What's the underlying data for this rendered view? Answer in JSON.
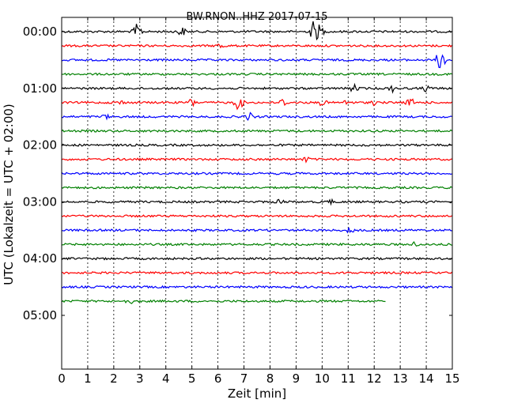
{
  "chart_data": {
    "type": "line",
    "title": "BW.RNON..HHZ 2017-07-15",
    "xlabel": "Zeit  [min]",
    "ylabel": "UTC (Lokalzeit = UTC + 02:00)",
    "xlim": [
      0,
      15
    ],
    "x_ticks": [
      0,
      1,
      2,
      3,
      4,
      5,
      6,
      7,
      8,
      9,
      10,
      11,
      12,
      13,
      14,
      15
    ],
    "x_tick_labels": [
      "0",
      "1",
      "2",
      "3",
      "4",
      "5",
      "6",
      "7",
      "8",
      "9",
      "10",
      "11",
      "12",
      "13",
      "14",
      "15"
    ],
    "y_tick_labels": [
      "00:00",
      "01:00",
      "02:00",
      "03:00",
      "04:00",
      "05:00"
    ],
    "y_tick_rows": [
      0,
      4,
      8,
      12,
      16,
      20
    ],
    "rows_total": 24,
    "grid_x": true,
    "colors": [
      "#000000",
      "#ff0000",
      "#0000ff",
      "#008000"
    ],
    "series": [
      {
        "row": 0,
        "end_min": 15,
        "events": [
          [
            2.9,
            10
          ],
          [
            4.6,
            6
          ],
          [
            9.7,
            16
          ],
          [
            9.9,
            9
          ]
        ]
      },
      {
        "row": 1,
        "end_min": 15,
        "events": [
          [
            6.1,
            4
          ]
        ]
      },
      {
        "row": 2,
        "end_min": 15,
        "events": [
          [
            14.55,
            14
          ],
          [
            14.7,
            6
          ]
        ]
      },
      {
        "row": 3,
        "end_min": 15,
        "events": []
      },
      {
        "row": 4,
        "end_min": 15,
        "events": [
          [
            11.2,
            5
          ],
          [
            12.7,
            4
          ],
          [
            14.0,
            4
          ]
        ]
      },
      {
        "row": 5,
        "end_min": 15,
        "events": [
          [
            2.2,
            4
          ],
          [
            5.0,
            5
          ],
          [
            6.8,
            10
          ],
          [
            8.5,
            5
          ],
          [
            10.0,
            4
          ],
          [
            11.0,
            4
          ],
          [
            12.0,
            3
          ],
          [
            13.4,
            5
          ]
        ]
      },
      {
        "row": 6,
        "end_min": 15,
        "events": [
          [
            1.7,
            3
          ],
          [
            7.2,
            5
          ]
        ]
      },
      {
        "row": 7,
        "end_min": 15,
        "events": []
      },
      {
        "row": 8,
        "end_min": 15,
        "events": []
      },
      {
        "row": 9,
        "end_min": 15,
        "events": [
          [
            9.4,
            3
          ]
        ]
      },
      {
        "row": 10,
        "end_min": 15,
        "events": []
      },
      {
        "row": 11,
        "end_min": 15,
        "events": []
      },
      {
        "row": 12,
        "end_min": 15,
        "events": [
          [
            8.4,
            4
          ],
          [
            10.3,
            3
          ]
        ]
      },
      {
        "row": 13,
        "end_min": 15,
        "events": []
      },
      {
        "row": 14,
        "end_min": 15,
        "events": [
          [
            11.1,
            4
          ]
        ]
      },
      {
        "row": 15,
        "end_min": 15,
        "events": [
          [
            13.5,
            3
          ]
        ]
      },
      {
        "row": 16,
        "end_min": 15,
        "events": []
      },
      {
        "row": 17,
        "end_min": 15,
        "events": []
      },
      {
        "row": 18,
        "end_min": 15,
        "events": []
      },
      {
        "row": 19,
        "end_min": 12.45,
        "events": [
          [
            2.6,
            3
          ]
        ]
      }
    ]
  }
}
